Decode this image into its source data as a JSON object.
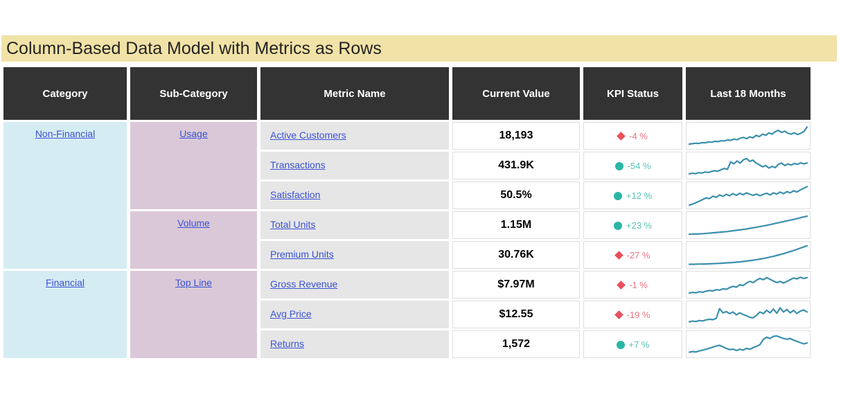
{
  "title": "Column-Based Data Model with Metrics as Rows",
  "colors": {
    "title_bg": "#f1e2a7",
    "title_text": "#252423",
    "header_bg": "#333333",
    "header_text": "#ffffff",
    "category_bg": "#d6ecf3",
    "subcategory_bg": "#dac8d8",
    "metric_bg": "#e6e6e6",
    "link": "#3a52d3",
    "kpi_bad": "#e9505e",
    "kpi_bad_text": "#ee7080",
    "kpi_good": "#2ab6a5",
    "kpi_good_text": "#55c2b4",
    "sparkline": "#3b8fad",
    "cell_border": "#dedede"
  },
  "chart_data": {
    "type": "table",
    "title": "Column-Based Data Model with Metrics as Rows",
    "columns": [
      "Category",
      "Sub-Category",
      "Metric Name",
      "Current Value",
      "KPI Status",
      "Last 18 Months"
    ],
    "category_groups": [
      {
        "label": "Non-Financial",
        "rowspan": 5
      },
      {
        "label": "Financial",
        "rowspan": 3
      }
    ],
    "subcategory_groups": [
      {
        "label": "Usage",
        "rowspan": 3
      },
      {
        "label": "Volume",
        "rowspan": 2
      },
      {
        "label": "Top Line",
        "rowspan": 3
      }
    ],
    "sparkline_period": "Last 18 Months",
    "rows": [
      {
        "category": "Non-Financial",
        "subcategory": "Usage",
        "metric": "Active Customers",
        "current_value": "18,193",
        "kpi_status": {
          "change": "-4 %",
          "sentiment": "bad",
          "icon": "diamond-icon"
        },
        "sparkline_trend": "rising-noisy",
        "spark": [
          0.1,
          0.12,
          0.14,
          0.13,
          0.17,
          0.16,
          0.2,
          0.19,
          0.23,
          0.22,
          0.26,
          0.25,
          0.3,
          0.28,
          0.34,
          0.31,
          0.38,
          0.42,
          0.36,
          0.45,
          0.4,
          0.52,
          0.46,
          0.58,
          0.52,
          0.64,
          0.58,
          0.7,
          0.76,
          0.66,
          0.72,
          0.62,
          0.58,
          0.64,
          0.56,
          0.62,
          0.7,
          0.92
        ]
      },
      {
        "category": "Non-Financial",
        "subcategory": "Usage",
        "metric": "Transactions",
        "current_value": "431.9K",
        "kpi_status": {
          "change": "-54 %",
          "sentiment": "good",
          "icon": "circle-icon"
        },
        "sparkline_trend": "rise-peak-dip-recover",
        "spark": [
          0.1,
          0.13,
          0.11,
          0.16,
          0.14,
          0.19,
          0.17,
          0.22,
          0.25,
          0.23,
          0.3,
          0.36,
          0.32,
          0.68,
          0.58,
          0.72,
          0.62,
          0.78,
          0.84,
          0.7,
          0.76,
          0.62,
          0.54,
          0.44,
          0.5,
          0.38,
          0.46,
          0.4,
          0.56,
          0.62,
          0.5,
          0.58,
          0.52,
          0.6,
          0.56,
          0.63,
          0.58,
          0.62
        ]
      },
      {
        "category": "Non-Financial",
        "subcategory": "Usage",
        "metric": "Satisfaction",
        "current_value": "50.5%",
        "kpi_status": {
          "change": "+12 %",
          "sentiment": "good",
          "icon": "circle-icon"
        },
        "sparkline_trend": "rising-noisy",
        "spark": [
          0.03,
          0.08,
          0.15,
          0.22,
          0.3,
          0.38,
          0.34,
          0.46,
          0.4,
          0.52,
          0.45,
          0.55,
          0.48,
          0.58,
          0.5,
          0.6,
          0.53,
          0.62,
          0.55,
          0.5,
          0.56,
          0.48,
          0.55,
          0.6,
          0.52,
          0.62,
          0.56,
          0.66,
          0.58,
          0.68,
          0.62,
          0.72,
          0.66,
          0.76,
          0.84,
          0.92
        ]
      },
      {
        "category": "Non-Financial",
        "subcategory": "Volume",
        "metric": "Total Units",
        "current_value": "1.15M",
        "kpi_status": {
          "change": "+23 %",
          "sentiment": "good",
          "icon": "circle-icon"
        },
        "sparkline_trend": "smooth-growth",
        "spark": [
          0.06,
          0.07,
          0.08,
          0.09,
          0.11,
          0.13,
          0.15,
          0.17,
          0.19,
          0.22,
          0.25,
          0.28,
          0.31,
          0.35,
          0.39,
          0.43,
          0.47,
          0.52,
          0.57,
          0.62,
          0.67,
          0.72,
          0.77,
          0.82,
          0.88,
          0.93
        ]
      },
      {
        "category": "Non-Financial",
        "subcategory": "Volume",
        "metric": "Premium Units",
        "current_value": "30.76K",
        "kpi_status": {
          "change": "-27 %",
          "sentiment": "bad",
          "icon": "diamond-icon"
        },
        "sparkline_trend": "smooth-exponential-growth",
        "spark": [
          0.05,
          0.05,
          0.06,
          0.06,
          0.07,
          0.08,
          0.09,
          0.1,
          0.12,
          0.13,
          0.15,
          0.17,
          0.2,
          0.23,
          0.26,
          0.3,
          0.34,
          0.39,
          0.44,
          0.5,
          0.56,
          0.63,
          0.7,
          0.78,
          0.86,
          0.94
        ]
      },
      {
        "category": "Financial",
        "subcategory": "Top Line",
        "metric": "Gross Revenue",
        "current_value": "$7.97M",
        "kpi_status": {
          "change": "-1 %",
          "sentiment": "bad",
          "icon": "diamond-icon"
        },
        "sparkline_trend": "rising-noisy",
        "spark": [
          0.1,
          0.13,
          0.11,
          0.16,
          0.14,
          0.19,
          0.22,
          0.2,
          0.26,
          0.24,
          0.3,
          0.28,
          0.36,
          0.42,
          0.38,
          0.5,
          0.46,
          0.58,
          0.66,
          0.6,
          0.72,
          0.8,
          0.74,
          0.84,
          0.76,
          0.68,
          0.6,
          0.66,
          0.58,
          0.66,
          0.74,
          0.82,
          0.78,
          0.86,
          0.8,
          0.84
        ]
      },
      {
        "category": "Financial",
        "subcategory": "Top Line",
        "metric": "Avg Price",
        "current_value": "$12.55",
        "kpi_status": {
          "change": "-19 %",
          "sentiment": "bad",
          "icon": "diamond-icon"
        },
        "sparkline_trend": "volatile",
        "spark": [
          0.15,
          0.18,
          0.16,
          0.21,
          0.19,
          0.24,
          0.27,
          0.25,
          0.31,
          0.78,
          0.58,
          0.64,
          0.54,
          0.62,
          0.48,
          0.58,
          0.5,
          0.44,
          0.36,
          0.34,
          0.46,
          0.62,
          0.54,
          0.7,
          0.58,
          0.76,
          0.56,
          0.82,
          0.62,
          0.74,
          0.58,
          0.7,
          0.55,
          0.66,
          0.72,
          0.62
        ]
      },
      {
        "category": "Financial",
        "subcategory": "Top Line",
        "metric": "Returns",
        "current_value": "1,572",
        "kpi_status": {
          "change": "+7 %",
          "sentiment": "good",
          "icon": "circle-icon"
        },
        "sparkline_trend": "dip-then-spike-decline",
        "spark": [
          0.12,
          0.15,
          0.13,
          0.18,
          0.22,
          0.26,
          0.31,
          0.36,
          0.42,
          0.45,
          0.38,
          0.3,
          0.24,
          0.27,
          0.2,
          0.26,
          0.22,
          0.3,
          0.26,
          0.34,
          0.4,
          0.48,
          0.74,
          0.84,
          0.78,
          0.88,
          0.9,
          0.84,
          0.78,
          0.74,
          0.78,
          0.7,
          0.64,
          0.58,
          0.52,
          0.56
        ]
      }
    ]
  }
}
